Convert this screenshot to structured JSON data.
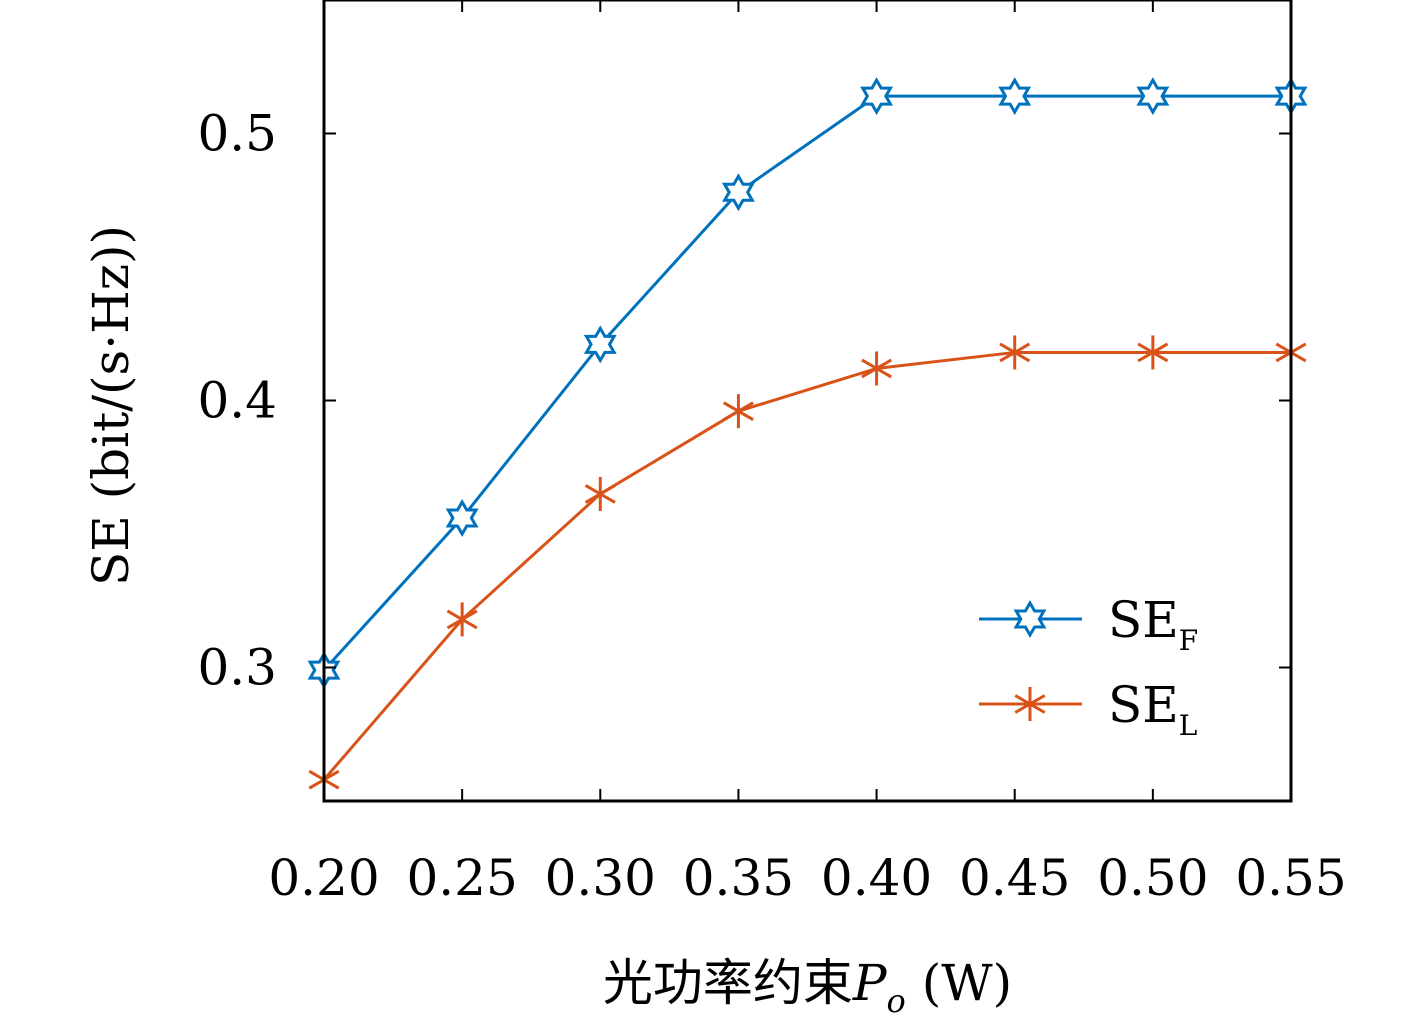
{
  "chart_data": {
    "type": "line",
    "title": "",
    "xlabel": "光功率约束",
    "xlabel_symbol": "P",
    "xlabel_subscript": "o",
    "xlabel_unit": " (W)",
    "ylabel": "SE (bit/(s·Hz))",
    "x": [
      0.2,
      0.25,
      0.3,
      0.35,
      0.4,
      0.45,
      0.5,
      0.55
    ],
    "x_tick_labels": [
      "0.20",
      "0.25",
      "0.30",
      "0.35",
      "0.40",
      "0.45",
      "0.50",
      "0.55"
    ],
    "xlim": [
      0.2,
      0.55
    ],
    "ylim": [
      0.25,
      0.55
    ],
    "y_ticks": [
      0.3,
      0.4,
      0.5
    ],
    "y_tick_labels": [
      "0.3",
      "0.4",
      "0.5"
    ],
    "grid": false,
    "legend_position": "bottom-right",
    "series": [
      {
        "name": "SE",
        "name_subscript": "F",
        "marker": "hexagram",
        "color": "#0072BD",
        "values": [
          0.299,
          0.356,
          0.421,
          0.478,
          0.514,
          0.514,
          0.514,
          0.514
        ]
      },
      {
        "name": "SE",
        "name_subscript": "L",
        "marker": "asterisk",
        "color": "#D95319",
        "values": [
          0.258,
          0.318,
          0.365,
          0.396,
          0.412,
          0.418,
          0.418,
          0.418
        ]
      }
    ]
  }
}
